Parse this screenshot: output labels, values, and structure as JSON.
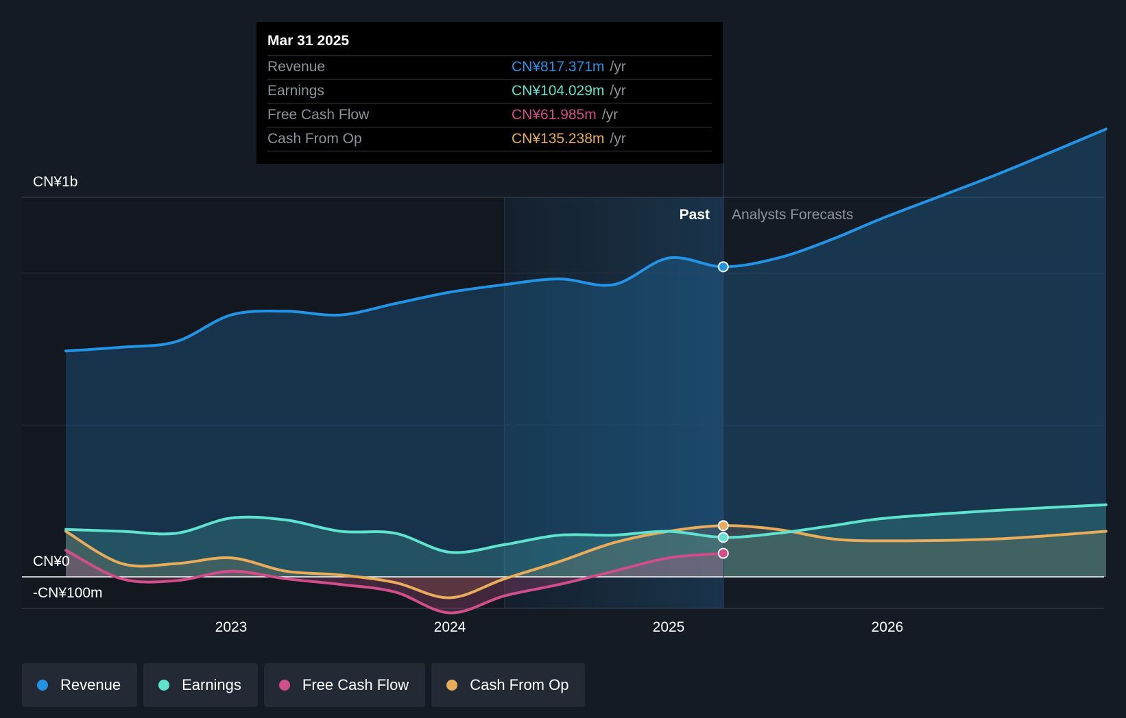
{
  "colors": {
    "revenue": "#2394e5",
    "earnings": "#5fe3cf",
    "free_cash_flow": "#d04f8b",
    "cash_from_op": "#e8ac5a",
    "background": "#151b24"
  },
  "tooltip": {
    "date": "Mar 31 2025",
    "rows": [
      {
        "label": "Revenue",
        "value": "CN¥817.371m",
        "unit": "/yr"
      },
      {
        "label": "Earnings",
        "value": "CN¥104.029m",
        "unit": "/yr"
      },
      {
        "label": "Free Cash Flow",
        "value": "CN¥61.985m",
        "unit": "/yr"
      },
      {
        "label": "Cash From Op",
        "value": "CN¥135.238m",
        "unit": "/yr"
      }
    ]
  },
  "legend": [
    {
      "label": "Revenue"
    },
    {
      "label": "Earnings"
    },
    {
      "label": "Free Cash Flow"
    },
    {
      "label": "Cash From Op"
    }
  ],
  "chart_data": {
    "type": "line",
    "title": "",
    "y_axis_labels": {
      "top": "CN¥1b",
      "zero": "CN¥0",
      "bottom": "-CN¥100m"
    },
    "ylim": [
      -100,
      1200
    ],
    "xlim": [
      2022.21,
      2027.0
    ],
    "x_ticks": [
      2023,
      2024,
      2025,
      2026
    ],
    "x_tick_labels": [
      "2023",
      "2024",
      "2025",
      "2026"
    ],
    "past_label": "Past",
    "forecast_label": "Analysts Forecasts",
    "divider_x": 2025.25,
    "highlight_start_x": 2024.25,
    "series": [
      {
        "name": "Revenue",
        "key": "revenue",
        "x": [
          2022.21,
          2022.5,
          2022.75,
          2023.0,
          2023.25,
          2023.5,
          2023.75,
          2024.0,
          2024.25,
          2024.5,
          2024.75,
          2025.0,
          2025.25,
          2025.5,
          2025.75,
          2026.0,
          2026.5,
          2027.0
        ],
        "values": [
          595,
          605,
          620,
          690,
          700,
          690,
          720,
          750,
          770,
          785,
          770,
          840,
          817,
          840,
          890,
          950,
          1060,
          1180
        ]
      },
      {
        "name": "Earnings",
        "key": "earnings",
        "x": [
          2022.21,
          2022.5,
          2022.75,
          2023.0,
          2023.25,
          2023.5,
          2023.75,
          2024.0,
          2024.25,
          2024.5,
          2024.75,
          2025.0,
          2025.25,
          2025.5,
          2025.75,
          2026.0,
          2026.5,
          2027.0
        ],
        "values": [
          125,
          120,
          115,
          155,
          150,
          120,
          115,
          65,
          85,
          110,
          110,
          120,
          104,
          115,
          135,
          155,
          175,
          190
        ]
      },
      {
        "name": "Free Cash Flow",
        "key": "free_cash_flow",
        "x": [
          2022.21,
          2022.5,
          2022.75,
          2023.0,
          2023.25,
          2023.5,
          2023.75,
          2024.0,
          2024.25,
          2024.5,
          2024.75,
          2025.0,
          2025.25
        ],
        "values": [
          70,
          -5,
          -10,
          15,
          -5,
          -20,
          -40,
          -95,
          -50,
          -20,
          15,
          50,
          62
        ]
      },
      {
        "name": "Cash From Op",
        "key": "cash_from_op",
        "x": [
          2022.21,
          2022.5,
          2022.75,
          2023.0,
          2023.25,
          2023.5,
          2023.75,
          2024.0,
          2024.25,
          2024.5,
          2024.75,
          2025.0,
          2025.25,
          2025.5,
          2025.75,
          2026.0,
          2026.5,
          2027.0
        ],
        "values": [
          120,
          35,
          35,
          50,
          15,
          5,
          -15,
          -55,
          -5,
          40,
          90,
          120,
          135,
          125,
          100,
          95,
          100,
          120
        ]
      }
    ]
  }
}
